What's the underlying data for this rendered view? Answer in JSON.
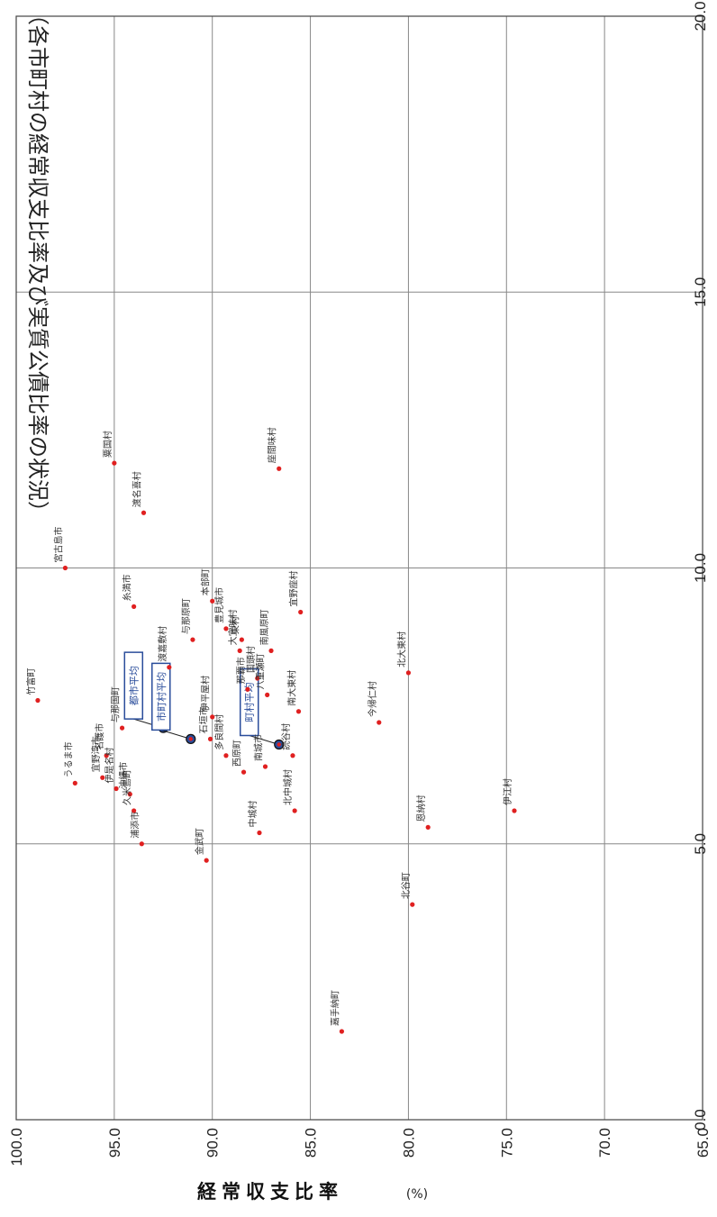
{
  "title": "（各市町村の経常収支比率及び実質公債比率の状況）",
  "ylabel": "経常収支比率",
  "yunit": "(%)",
  "colors": {
    "point": "#e02020",
    "average": "#2a4d9b",
    "grid": "#888888"
  },
  "chart_data": {
    "type": "scatter",
    "title": "（各市町村の経常収支比率及び実質公債比率の状況）",
    "ylabel": "経常収支比率",
    "xlabel": "",
    "xlim": [
      0,
      20
    ],
    "ylim": [
      65,
      100
    ],
    "xticks": [
      "0.0",
      "5.0",
      "10.0",
      "15.0",
      "20.0"
    ],
    "yticks": [
      "100.0",
      "95.0",
      "90.0",
      "85.0",
      "80.0",
      "75.0",
      "70.0",
      "65.0"
    ],
    "grid": true,
    "points": [
      {
        "name": "竹富町",
        "x": 7.6,
        "y": 98.9
      },
      {
        "name": "宮古島市",
        "x": 10.0,
        "y": 97.5
      },
      {
        "name": "うるま市",
        "x": 6.1,
        "y": 97.0
      },
      {
        "name": "宜野湾市",
        "x": 6.2,
        "y": 95.6
      },
      {
        "name": "名護市",
        "x": 6.6,
        "y": 95.4
      },
      {
        "name": "伊是名村",
        "x": 6.0,
        "y": 94.9
      },
      {
        "name": "沖縄市",
        "x": 5.9,
        "y": 94.2
      },
      {
        "name": "久米島町",
        "x": 5.6,
        "y": 94.0
      },
      {
        "name": "浦添市",
        "x": 5.0,
        "y": 93.6
      },
      {
        "name": "与那国町",
        "x": 7.1,
        "y": 94.6
      },
      {
        "name": "糸満市",
        "x": 9.3,
        "y": 94.0
      },
      {
        "name": "粟国村",
        "x": 11.9,
        "y": 95.0
      },
      {
        "name": "渡名喜村",
        "x": 11.0,
        "y": 93.5
      },
      {
        "name": "渡嘉敷村",
        "x": 8.2,
        "y": 92.2
      },
      {
        "name": "与那原町",
        "x": 8.7,
        "y": 91.0
      },
      {
        "name": "金武町",
        "x": 4.7,
        "y": 90.3
      },
      {
        "name": "伊平屋村",
        "x": 7.3,
        "y": 90.0
      },
      {
        "name": "石垣市",
        "x": 6.9,
        "y": 90.1
      },
      {
        "name": "多良間村",
        "x": 6.6,
        "y": 89.3
      },
      {
        "name": "本部町",
        "x": 9.4,
        "y": 90.0
      },
      {
        "name": "豊見城市",
        "x": 8.9,
        "y": 89.3
      },
      {
        "name": "大宜味村",
        "x": 8.5,
        "y": 88.6
      },
      {
        "name": "東村",
        "x": 8.7,
        "y": 88.5
      },
      {
        "name": "国頭村",
        "x": 8.0,
        "y": 87.7
      },
      {
        "name": "南風原町",
        "x": 8.5,
        "y": 87.0
      },
      {
        "name": "那覇市",
        "x": 7.8,
        "y": 88.2
      },
      {
        "name": "八重瀬町",
        "x": 7.7,
        "y": 87.2
      },
      {
        "name": "宜野座村",
        "x": 9.2,
        "y": 85.5
      },
      {
        "name": "西原町",
        "x": 6.3,
        "y": 88.4
      },
      {
        "name": "南城市",
        "x": 6.4,
        "y": 87.3
      },
      {
        "name": "読谷村",
        "x": 6.6,
        "y": 85.9
      },
      {
        "name": "中城村",
        "x": 5.2,
        "y": 87.6
      },
      {
        "name": "北中城村",
        "x": 5.6,
        "y": 85.8
      },
      {
        "name": "南大東村",
        "x": 7.4,
        "y": 85.6
      },
      {
        "name": "今帰仁村",
        "x": 7.2,
        "y": 81.5
      },
      {
        "name": "北大東村",
        "x": 8.1,
        "y": 80.0
      },
      {
        "name": "恩納村",
        "x": 5.3,
        "y": 79.0
      },
      {
        "name": "伊江村",
        "x": 5.6,
        "y": 74.6
      },
      {
        "name": "北谷町",
        "x": 3.9,
        "y": 79.8
      },
      {
        "name": "嘉手納町",
        "x": 1.6,
        "y": 83.4
      },
      {
        "name": "座間味村",
        "x": 11.8,
        "y": 86.6
      }
    ],
    "averages": [
      {
        "name": "都市平均",
        "x": 7.1,
        "y": 92.5
      },
      {
        "name": "市町村平均",
        "x": 6.9,
        "y": 91.1
      },
      {
        "name": "町村平均",
        "x": 6.8,
        "y": 86.6
      }
    ]
  }
}
